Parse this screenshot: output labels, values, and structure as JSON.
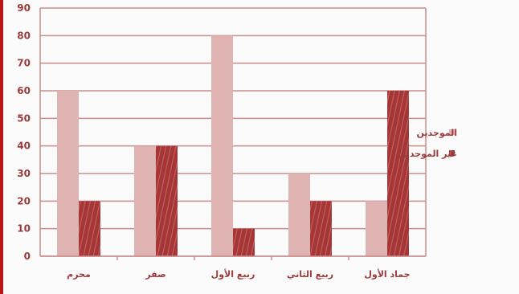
{
  "chart_data": {
    "type": "bar",
    "categories": [
      "محرم",
      "صفر",
      "ربيع الأول",
      "ربيع الثاني",
      "جماد الأول"
    ],
    "series": [
      {
        "name": "الموجدين",
        "values": [
          60,
          40,
          80,
          30,
          20
        ],
        "color": "#e0b3b3"
      },
      {
        "name": "غير الموجدين",
        "values": [
          20,
          40,
          10,
          20,
          60
        ],
        "color": "#a63535"
      }
    ],
    "ylim": [
      0,
      90
    ],
    "yticks": [
      0,
      10,
      20,
      30,
      40,
      50,
      60,
      70,
      80,
      90
    ],
    "grid": true,
    "legend": "right",
    "axis_color": "#c98c8c",
    "text_color": "#9c3b3b"
  }
}
